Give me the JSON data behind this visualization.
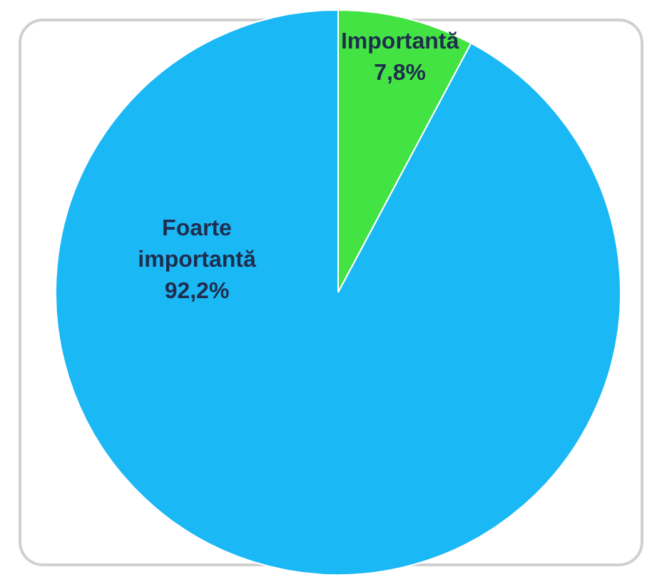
{
  "chart_data": {
    "type": "pie",
    "categories": [
      "Importantă",
      "Foarte importantă"
    ],
    "values": [
      7.8,
      92.2
    ],
    "colors": [
      "#44e344",
      "#1ab8f5"
    ],
    "value_labels": [
      "7,8%",
      "92,2%"
    ]
  }
}
